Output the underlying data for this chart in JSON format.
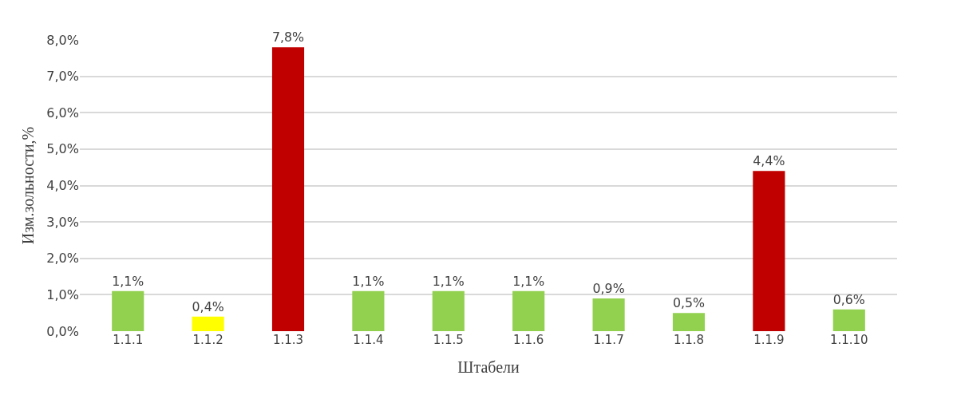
{
  "chart_data": {
    "type": "bar",
    "xlabel": "Штабели",
    "ylabel": "Изм.зольности,%",
    "categories": [
      "1.1.1",
      "1.1.2",
      "1.1.3",
      "1.1.4",
      "1.1.5",
      "1.1.6",
      "1.1.7",
      "1.1.8",
      "1.1.9",
      "1.1.10"
    ],
    "values": [
      1.1,
      0.4,
      7.8,
      1.1,
      1.1,
      1.1,
      0.9,
      0.5,
      4.4,
      0.6
    ],
    "colors": [
      "#92d050",
      "#ffff00",
      "#c00000",
      "#92d050",
      "#92d050",
      "#92d050",
      "#92d050",
      "#92d050",
      "#c00000",
      "#92d050"
    ],
    "value_labels": [
      "1,1%",
      "0,4%",
      "7,8%",
      "1,1%",
      "1,1%",
      "1,1%",
      "0,9%",
      "0,5%",
      "4,4%",
      "0,6%"
    ],
    "ylim": [
      0,
      8
    ],
    "yticks": [
      {
        "value": 0,
        "label": "0,0%"
      },
      {
        "value": 1,
        "label": "1,0%"
      },
      {
        "value": 2,
        "label": "2,0%"
      },
      {
        "value": 3,
        "label": "3,0%"
      },
      {
        "value": 4,
        "label": "4,0%"
      },
      {
        "value": 5,
        "label": "5,0%"
      },
      {
        "value": 6,
        "label": "6,0%"
      },
      {
        "value": 7,
        "label": "7,0%"
      },
      {
        "value": 8,
        "label": "8,0%"
      }
    ],
    "grid": "y"
  }
}
